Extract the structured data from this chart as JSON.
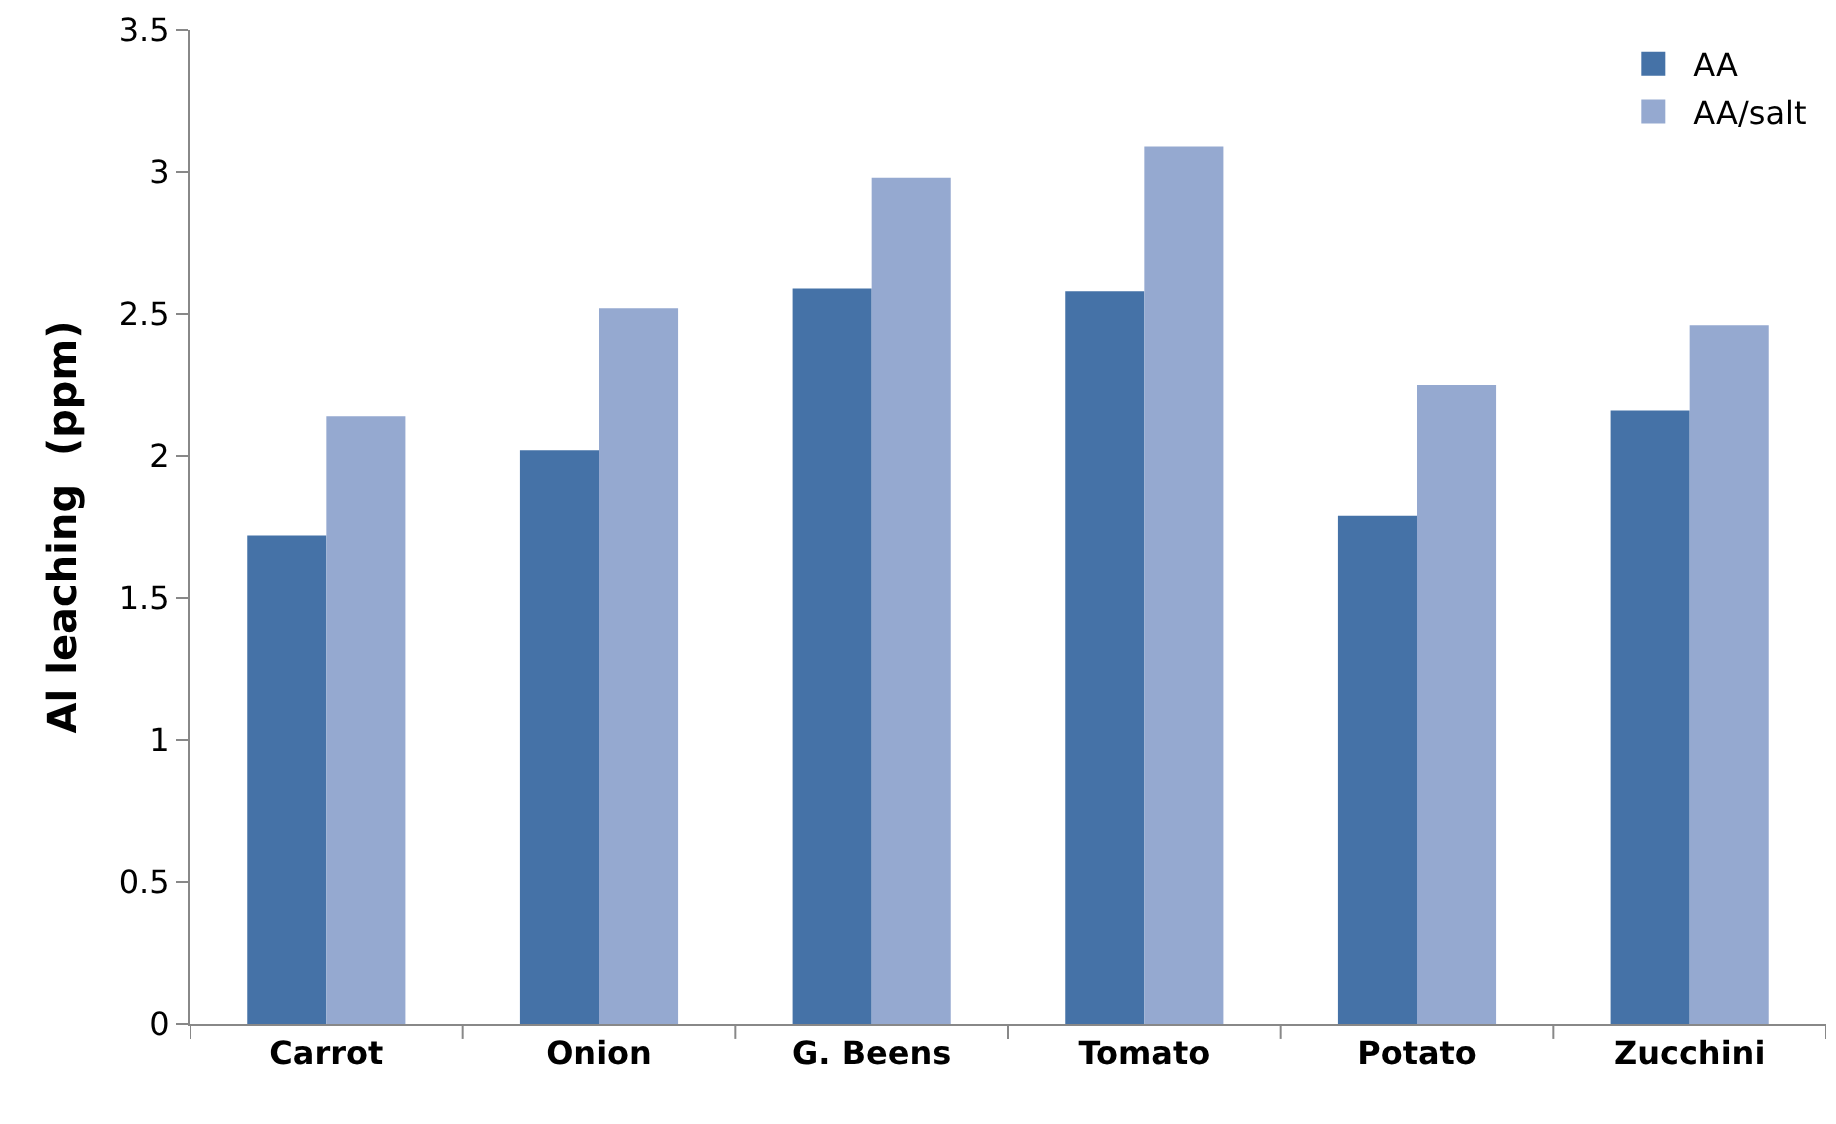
{
  "chart_data": {
    "type": "bar",
    "ylabel": "Al leaching  (ppm)",
    "categories": [
      "Carrot",
      "Onion",
      "G. Beens",
      "Tomato",
      "Potato",
      "Zucchini"
    ],
    "series": [
      {
        "name": "AA",
        "color": "#4572a7",
        "values": [
          1.72,
          2.02,
          2.59,
          2.58,
          1.79,
          2.16
        ]
      },
      {
        "name": "AA/salt",
        "color": "#95a9d0",
        "values": [
          2.14,
          2.52,
          2.98,
          3.09,
          2.25,
          2.46
        ]
      }
    ],
    "ylim": [
      0,
      3.5
    ],
    "yticks": [
      0,
      0.5,
      1,
      1.5,
      2,
      2.5,
      3,
      3.5
    ],
    "legend": "top right"
  }
}
